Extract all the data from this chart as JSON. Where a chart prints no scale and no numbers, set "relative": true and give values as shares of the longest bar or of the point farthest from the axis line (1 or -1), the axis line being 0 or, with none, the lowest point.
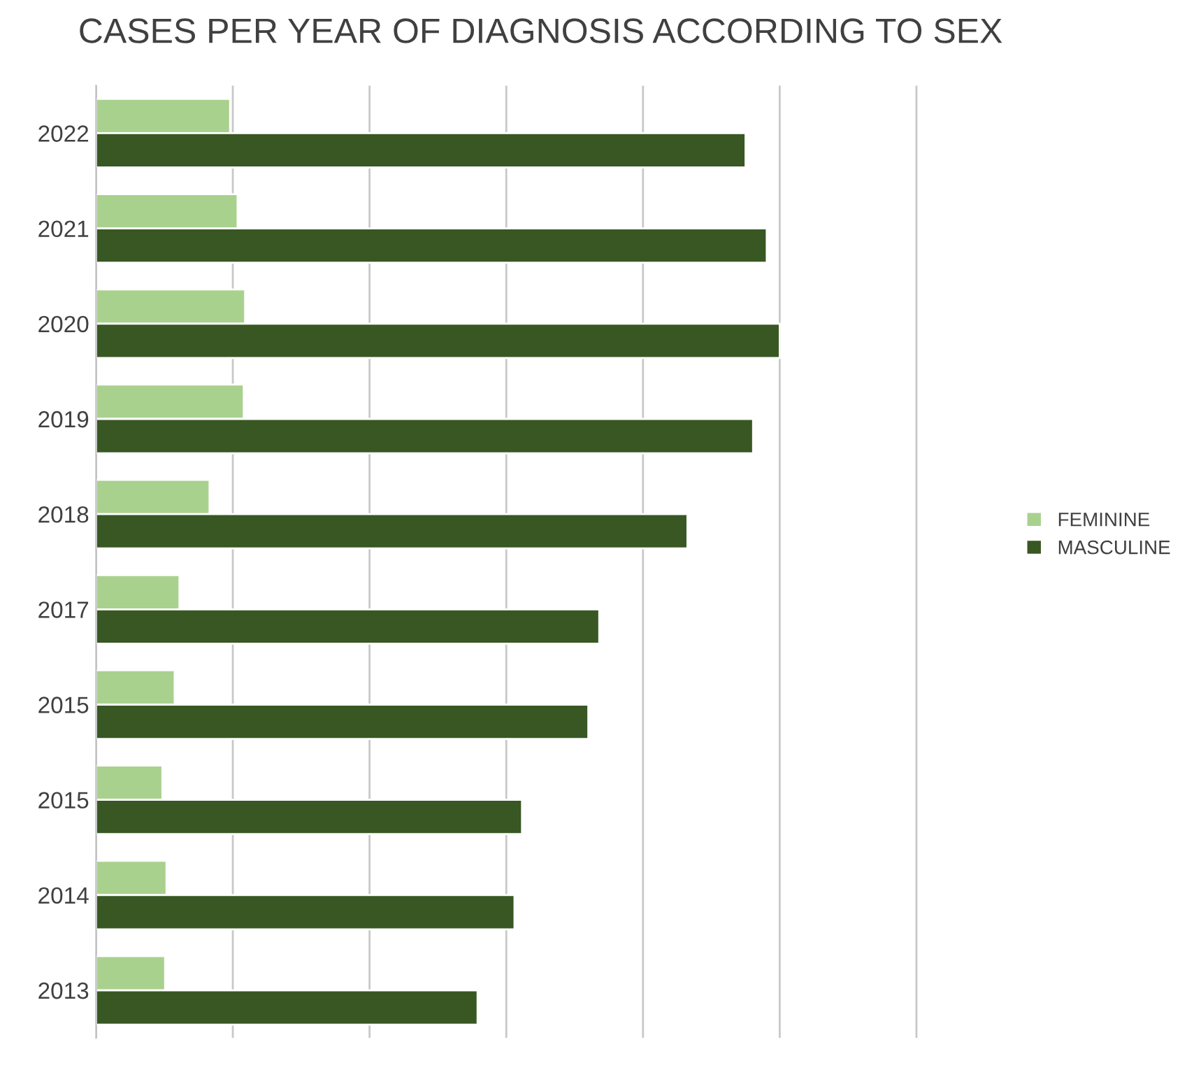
{
  "chart_data": {
    "type": "bar",
    "orientation": "horizontal",
    "relative": true,
    "title": "CASES PER YEAR OF DIAGNOSIS ACCORDING TO SEX",
    "categories": [
      "2022",
      "2021",
      "2020",
      "2019",
      "2018",
      "2017",
      "2015",
      "2015",
      "2014",
      "2013"
    ],
    "series": [
      {
        "name": "FEMININE",
        "color": "#a9d18e",
        "values": [
          0.196,
          0.207,
          0.218,
          0.216,
          0.166,
          0.122,
          0.115,
          0.097,
          0.103,
          0.101
        ]
      },
      {
        "name": "MASCULINE",
        "color": "#385723",
        "values": [
          0.95,
          0.981,
          1.0,
          0.961,
          0.865,
          0.736,
          0.72,
          0.623,
          0.612,
          0.558
        ]
      }
    ],
    "grid": "x",
    "legend": "right",
    "tick_labels": "y"
  }
}
